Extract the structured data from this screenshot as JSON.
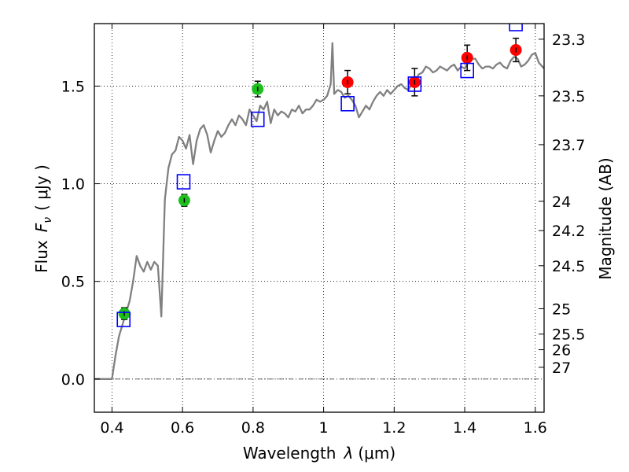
{
  "chart_data": {
    "type": "scatter",
    "xlabel": "Wavelength",
    "xlabel_symbol": "λ",
    "xlabel_unit": "(μm)",
    "ylabel": "Flux",
    "ylabel_symbol": "F",
    "ylabel_subscript": "ν",
    "ylabel_unit": "( μJy )",
    "y2label": "Magnitude (AB)",
    "xlim": [
      0.35,
      1.625
    ],
    "ylim": [
      -0.17,
      1.82
    ],
    "grid": true,
    "legend": "none",
    "x_ticks": [
      {
        "value": 0.4,
        "label": "0.4"
      },
      {
        "value": 0.6,
        "label": "0.6"
      },
      {
        "value": 0.8,
        "label": "0.8"
      },
      {
        "value": 1.0,
        "label": "1"
      },
      {
        "value": 1.2,
        "label": "1.2"
      },
      {
        "value": 1.4,
        "label": "1.4"
      },
      {
        "value": 1.6,
        "label": "1.6"
      }
    ],
    "y_ticks": [
      {
        "value": 0.0,
        "label": "0.0"
      },
      {
        "value": 0.5,
        "label": "0.5"
      },
      {
        "value": 1.0,
        "label": "1.0"
      },
      {
        "value": 1.5,
        "label": "1.5"
      }
    ],
    "y2_ticks": [
      {
        "flux": 1.74,
        "label": "23.3"
      },
      {
        "flux": 1.45,
        "label": "23.5"
      },
      {
        "flux": 1.2,
        "label": "23.7"
      },
      {
        "flux": 0.91,
        "label": "24"
      },
      {
        "flux": 0.76,
        "label": "24.2"
      },
      {
        "flux": 0.58,
        "label": "24.5"
      },
      {
        "flux": 0.36,
        "label": "25"
      },
      {
        "flux": 0.23,
        "label": "25.5"
      },
      {
        "flux": 0.15,
        "label": "26"
      },
      {
        "flux": 0.06,
        "label": "27"
      }
    ],
    "colors": {
      "spectrum": "#808080",
      "green": "#1dbf1d",
      "red": "#ff0000",
      "model": "#0000ff",
      "zero_line": "#555555"
    },
    "series": [
      {
        "kind": "line",
        "color": "#808080",
        "points": [
          [
            0.35,
            0.0
          ],
          [
            0.4,
            0.0
          ],
          [
            0.41,
            0.12
          ],
          [
            0.42,
            0.22
          ],
          [
            0.43,
            0.28
          ],
          [
            0.44,
            0.34
          ],
          [
            0.45,
            0.4
          ],
          [
            0.46,
            0.5
          ],
          [
            0.47,
            0.63
          ],
          [
            0.48,
            0.58
          ],
          [
            0.49,
            0.55
          ],
          [
            0.5,
            0.6
          ],
          [
            0.51,
            0.56
          ],
          [
            0.52,
            0.6
          ],
          [
            0.53,
            0.58
          ],
          [
            0.54,
            0.32
          ],
          [
            0.55,
            0.92
          ],
          [
            0.56,
            1.08
          ],
          [
            0.57,
            1.15
          ],
          [
            0.58,
            1.17
          ],
          [
            0.59,
            1.24
          ],
          [
            0.6,
            1.22
          ],
          [
            0.61,
            1.18
          ],
          [
            0.62,
            1.25
          ],
          [
            0.63,
            1.1
          ],
          [
            0.64,
            1.22
          ],
          [
            0.65,
            1.28
          ],
          [
            0.66,
            1.3
          ],
          [
            0.67,
            1.25
          ],
          [
            0.68,
            1.16
          ],
          [
            0.69,
            1.22
          ],
          [
            0.7,
            1.27
          ],
          [
            0.71,
            1.24
          ],
          [
            0.72,
            1.26
          ],
          [
            0.73,
            1.3
          ],
          [
            0.74,
            1.33
          ],
          [
            0.75,
            1.3
          ],
          [
            0.76,
            1.35
          ],
          [
            0.77,
            1.33
          ],
          [
            0.78,
            1.3
          ],
          [
            0.79,
            1.38
          ],
          [
            0.8,
            1.35
          ],
          [
            0.81,
            1.32
          ],
          [
            0.82,
            1.4
          ],
          [
            0.83,
            1.38
          ],
          [
            0.84,
            1.42
          ],
          [
            0.85,
            1.31
          ],
          [
            0.86,
            1.38
          ],
          [
            0.87,
            1.35
          ],
          [
            0.88,
            1.37
          ],
          [
            0.89,
            1.36
          ],
          [
            0.9,
            1.34
          ],
          [
            0.91,
            1.38
          ],
          [
            0.92,
            1.37
          ],
          [
            0.93,
            1.4
          ],
          [
            0.94,
            1.36
          ],
          [
            0.95,
            1.38
          ],
          [
            0.96,
            1.38
          ],
          [
            0.97,
            1.4
          ],
          [
            0.98,
            1.43
          ],
          [
            0.99,
            1.42
          ],
          [
            1.0,
            1.43
          ],
          [
            1.01,
            1.45
          ],
          [
            1.02,
            1.51
          ],
          [
            1.025,
            1.72
          ],
          [
            1.03,
            1.46
          ],
          [
            1.04,
            1.48
          ],
          [
            1.05,
            1.47
          ],
          [
            1.06,
            1.44
          ],
          [
            1.07,
            1.45
          ],
          [
            1.08,
            1.43
          ],
          [
            1.09,
            1.4
          ],
          [
            1.1,
            1.34
          ],
          [
            1.11,
            1.37
          ],
          [
            1.12,
            1.4
          ],
          [
            1.13,
            1.38
          ],
          [
            1.14,
            1.42
          ],
          [
            1.15,
            1.45
          ],
          [
            1.16,
            1.47
          ],
          [
            1.17,
            1.45
          ],
          [
            1.18,
            1.48
          ],
          [
            1.19,
            1.46
          ],
          [
            1.2,
            1.48
          ],
          [
            1.21,
            1.5
          ],
          [
            1.22,
            1.51
          ],
          [
            1.23,
            1.49
          ],
          [
            1.24,
            1.48
          ],
          [
            1.25,
            1.51
          ],
          [
            1.26,
            1.53
          ],
          [
            1.27,
            1.56
          ],
          [
            1.28,
            1.57
          ],
          [
            1.29,
            1.6
          ],
          [
            1.3,
            1.59
          ],
          [
            1.31,
            1.57
          ],
          [
            1.32,
            1.58
          ],
          [
            1.33,
            1.6
          ],
          [
            1.34,
            1.59
          ],
          [
            1.35,
            1.58
          ],
          [
            1.36,
            1.6
          ],
          [
            1.37,
            1.61
          ],
          [
            1.38,
            1.58
          ],
          [
            1.39,
            1.6
          ],
          [
            1.4,
            1.59
          ],
          [
            1.41,
            1.62
          ],
          [
            1.42,
            1.64
          ],
          [
            1.43,
            1.64
          ],
          [
            1.44,
            1.61
          ],
          [
            1.45,
            1.59
          ],
          [
            1.46,
            1.6
          ],
          [
            1.47,
            1.6
          ],
          [
            1.48,
            1.59
          ],
          [
            1.49,
            1.61
          ],
          [
            1.5,
            1.62
          ],
          [
            1.51,
            1.6
          ],
          [
            1.52,
            1.59
          ],
          [
            1.53,
            1.63
          ],
          [
            1.54,
            1.65
          ],
          [
            1.55,
            1.64
          ],
          [
            1.56,
            1.6
          ],
          [
            1.57,
            1.61
          ],
          [
            1.58,
            1.63
          ],
          [
            1.59,
            1.66
          ],
          [
            1.6,
            1.67
          ],
          [
            1.61,
            1.62
          ],
          [
            1.625,
            1.59
          ]
        ]
      },
      {
        "kind": "points",
        "marker": "circle",
        "color": "#1dbf1d",
        "points": [
          {
            "x": 0.435,
            "y": 0.335,
            "err": 0.03
          },
          {
            "x": 0.605,
            "y": 0.915,
            "err": 0.03
          },
          {
            "x": 0.813,
            "y": 1.485,
            "err": 0.04
          }
        ]
      },
      {
        "kind": "points",
        "marker": "circle",
        "color": "#ff0000",
        "points": [
          {
            "x": 1.068,
            "y": 1.52,
            "err": 0.06
          },
          {
            "x": 1.258,
            "y": 1.52,
            "err": 0.07
          },
          {
            "x": 1.407,
            "y": 1.645,
            "err": 0.065
          },
          {
            "x": 1.545,
            "y": 1.685,
            "err": 0.06
          }
        ]
      },
      {
        "kind": "points",
        "marker": "square",
        "color": "#0000ff",
        "points": [
          {
            "x": 0.433,
            "y": 0.305
          },
          {
            "x": 0.603,
            "y": 1.01
          },
          {
            "x": 0.813,
            "y": 1.33
          },
          {
            "x": 1.068,
            "y": 1.41
          },
          {
            "x": 1.258,
            "y": 1.51
          },
          {
            "x": 1.407,
            "y": 1.58
          },
          {
            "x": 1.545,
            "y": 1.82
          }
        ]
      }
    ]
  }
}
